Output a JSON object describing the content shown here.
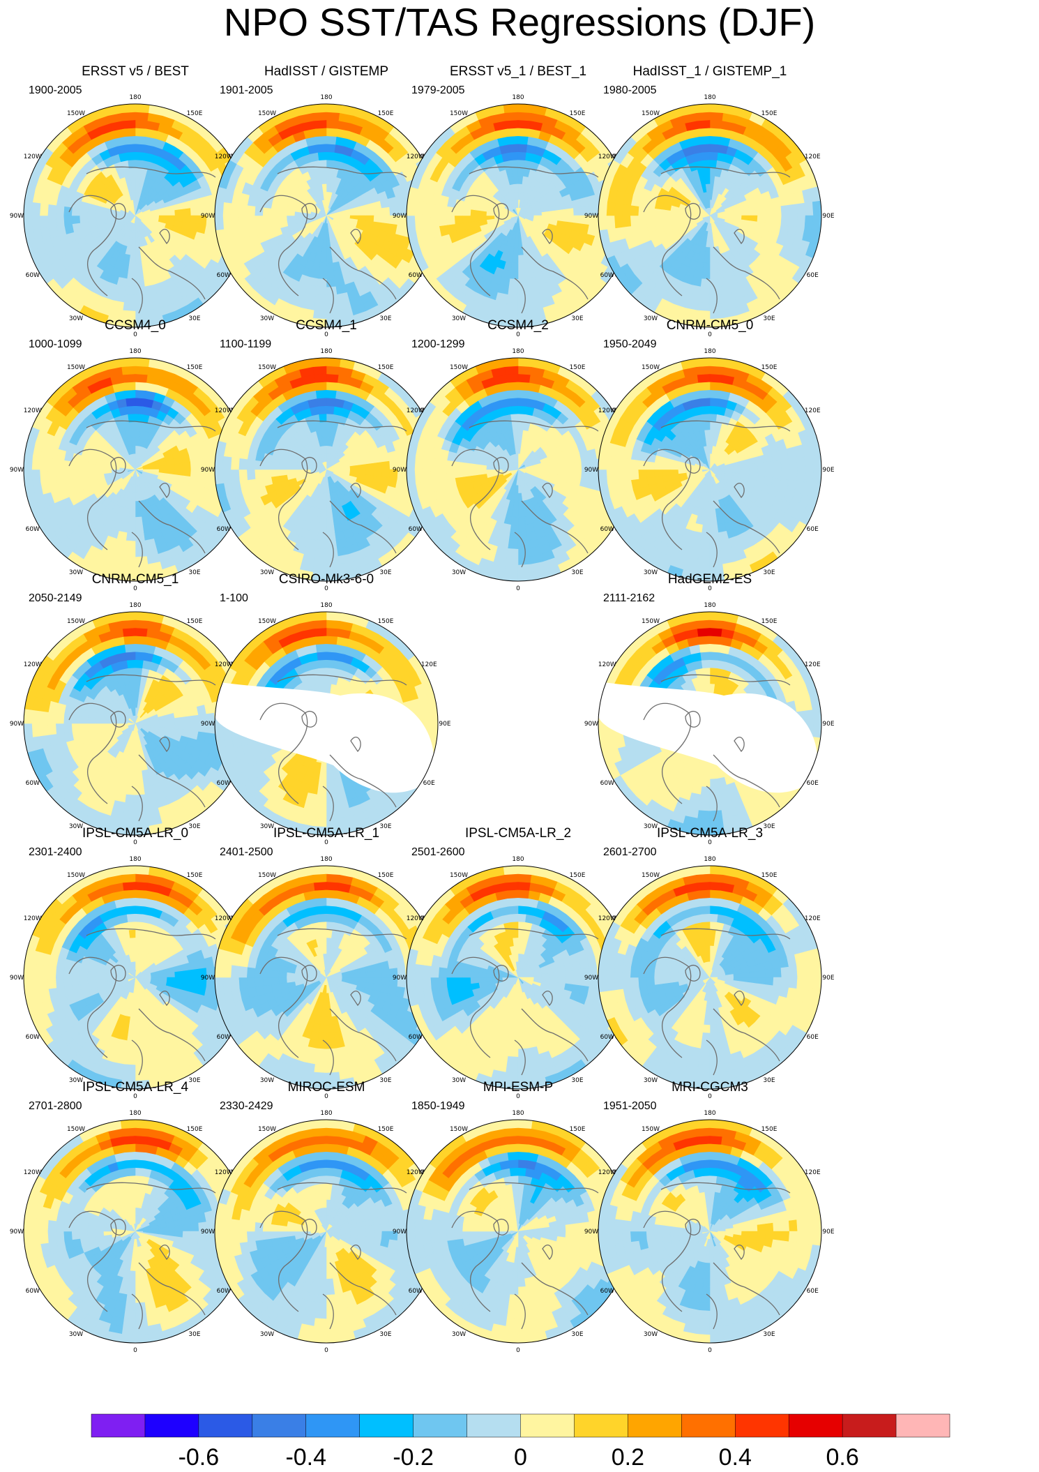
{
  "title": "NPO SST/TAS Regressions (DJF)",
  "longitude_labels": [
    "180",
    "150E",
    "120E",
    "90E",
    "60E",
    "30E",
    "0",
    "30W",
    "60W",
    "90W",
    "120W",
    "150W"
  ],
  "chart_data": {
    "type": "heatmap",
    "title": "NPO SST/TAS Regressions (DJF)",
    "projection": "north polar stereographic",
    "grid": false,
    "legend": "bottom",
    "colorbar": {
      "levels": [
        -0.7,
        -0.6,
        -0.5,
        -0.4,
        -0.3,
        -0.2,
        -0.1,
        0,
        0.1,
        0.2,
        0.3,
        0.4,
        0.5,
        0.6,
        0.7
      ],
      "tick_values": [
        -0.6,
        -0.4,
        -0.2,
        0,
        0.2,
        0.4,
        0.6
      ],
      "tick_labels": [
        "-0.6",
        "-0.4",
        "-0.2",
        "0",
        "0.2",
        "0.4",
        "0.6"
      ],
      "colors": [
        "#7f1ff2",
        "#1e00ff",
        "#2b5ae6",
        "#3a7fe6",
        "#2f96f5",
        "#00bfff",
        "#6fc6f0",
        "#b5def0",
        "#fff5a0",
        "#ffd42a",
        "#ffa500",
        "#ff7000",
        "#ff3500",
        "#e60000",
        "#c81c1c",
        "#ffb6b6"
      ]
    },
    "panels": [
      {
        "name": "ERSST v5 / BEST",
        "period": "1900-2005",
        "missing": false
      },
      {
        "name": "HadISST / GISTEMP",
        "period": "1901-2005",
        "missing": false
      },
      {
        "name": "ERSST v5_1 / BEST_1",
        "period": "1979-2005",
        "missing": false
      },
      {
        "name": "HadISST_1 / GISTEMP_1",
        "period": "1980-2005",
        "missing": false
      },
      {
        "name": "CCSM4_0",
        "period": "1000-1099",
        "missing": false
      },
      {
        "name": "CCSM4_1",
        "period": "1100-1199",
        "missing": false
      },
      {
        "name": "CCSM4_2",
        "period": "1200-1299",
        "missing": false
      },
      {
        "name": "CNRM-CM5_0",
        "period": "1950-2049",
        "missing": false
      },
      {
        "name": "CNRM-CM5_1",
        "period": "2050-2149",
        "missing": false
      },
      {
        "name": "CSIRO-Mk3-6-0",
        "period": "1-100",
        "missing": false
      },
      {
        "name": "",
        "period": "",
        "missing": true
      },
      {
        "name": "HadGEM2-ES",
        "period": "2111-2162",
        "missing": false
      },
      {
        "name": "IPSL-CM5A-LR_0",
        "period": "2301-2400",
        "missing": false
      },
      {
        "name": "IPSL-CM5A-LR_1",
        "period": "2401-2500",
        "missing": false
      },
      {
        "name": "IPSL-CM5A-LR_2",
        "period": "2501-2600",
        "missing": false
      },
      {
        "name": "IPSL-CM5A-LR_3",
        "period": "2601-2700",
        "missing": false
      },
      {
        "name": "IPSL-CM5A-LR_4",
        "period": "2701-2800",
        "missing": false
      },
      {
        "name": "MIROC-ESM",
        "period": "2330-2429",
        "missing": false
      },
      {
        "name": "MPI-ESM-P",
        "period": "1850-1949",
        "missing": false
      },
      {
        "name": "MRI-CGCM3",
        "period": "1951-2050",
        "missing": false
      }
    ]
  }
}
